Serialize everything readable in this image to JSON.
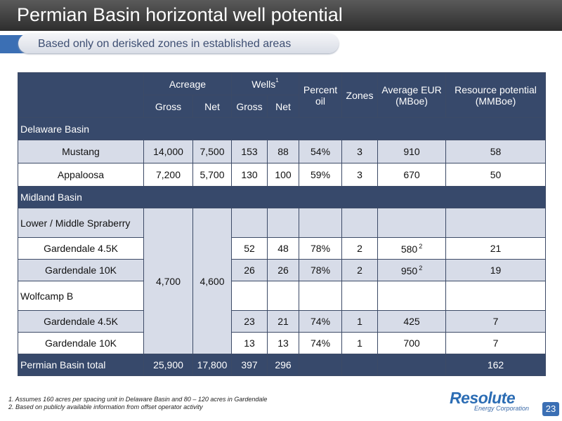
{
  "header": {
    "title": "Permian Basin horizontal well potential",
    "subtitle": "Based only on derisked zones in established areas"
  },
  "table": {
    "col_acreage": "Acreage",
    "col_wells": "Wells",
    "col_wells_sup": "1",
    "col_gross": "Gross",
    "col_net": "Net",
    "col_percent_oil": "Percent oil",
    "col_zones": "Zones",
    "col_eur": "Average EUR (MBoe)",
    "col_resource": "Resource potential (MMBoe)",
    "delaware_label": "Delaware Basin",
    "rows_delaware": [
      {
        "name": "Mustang",
        "acre_gross": "14,000",
        "acre_net": "7,500",
        "wells_gross": "153",
        "wells_net": "88",
        "pct_oil": "54%",
        "zones": "3",
        "eur": "910",
        "resource": "58"
      },
      {
        "name": "Appaloosa",
        "acre_gross": "7,200",
        "acre_net": "5,700",
        "wells_gross": "130",
        "wells_net": "100",
        "pct_oil": "59%",
        "zones": "3",
        "eur": "670",
        "resource": "50"
      }
    ],
    "midland_label": "Midland Basin",
    "midland_acre_gross": "4,700",
    "midland_acre_net": "4,600",
    "spraberry_label": "Lower / Middle Spraberry",
    "rows_spraberry": [
      {
        "name": "Gardendale 4.5K",
        "wells_gross": "52",
        "wells_net": "48",
        "pct_oil": "78%",
        "zones": "2",
        "eur": "580",
        "eur_sup": "2",
        "resource": "21"
      },
      {
        "name": "Gardendale 10K",
        "wells_gross": "26",
        "wells_net": "26",
        "pct_oil": "78%",
        "zones": "2",
        "eur": "950",
        "eur_sup": "2",
        "resource": "19"
      }
    ],
    "wolfcamp_label": "Wolfcamp B",
    "rows_wolfcamp": [
      {
        "name": "Gardendale 4.5K",
        "wells_gross": "23",
        "wells_net": "21",
        "pct_oil": "74%",
        "zones": "1",
        "eur": "425",
        "resource": "7"
      },
      {
        "name": "Gardendale 10K",
        "wells_gross": "13",
        "wells_net": "13",
        "pct_oil": "74%",
        "zones": "1",
        "eur": "700",
        "resource": "7"
      }
    ],
    "total": {
      "name": "Permian Basin total",
      "acre_gross": "25,900",
      "acre_net": "17,800",
      "wells_gross": "397",
      "wells_net": "296",
      "resource": "162"
    }
  },
  "footnotes": [
    "1. Assumes 160 acres per spacing unit in Delaware Basin and 80 – 120 acres in Gardendale",
    "2. Based on publicly available information from offset operator activity"
  ],
  "logo": {
    "word": "Resolute",
    "sub": "Energy Corporation"
  },
  "page_number": "23",
  "colors": {
    "header_dark": "#37496b",
    "row_alt": "#d7dce8",
    "accent_blue": "#3b6fb4"
  }
}
